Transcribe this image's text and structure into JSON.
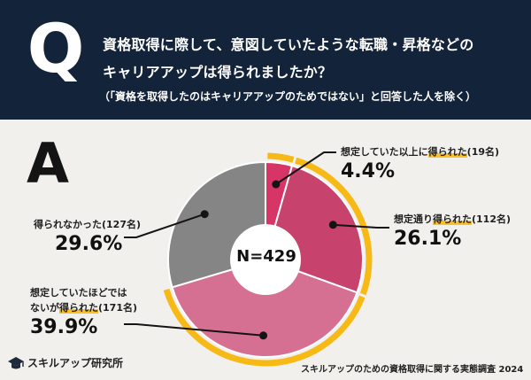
{
  "header": {
    "q_letter": "Q",
    "question_line1": "資格取得に際して、意図していたような転職・昇格などの",
    "question_line2": "キャリアアップは得られましたか？",
    "note": "（「資格を取得したのはキャリアアップのためではない」と回答した人を除く）"
  },
  "answer_letter": "A",
  "chart_data": {
    "type": "pie",
    "title": "資格取得に際して、意図していたような転職・昇格などのキャリアアップは得られましたか？",
    "total_label": "N=429",
    "slices": [
      {
        "label_pre": "想定していた以上に",
        "label_hl": "得られた",
        "count": "(19名)",
        "percent_label": "4.4%",
        "value": 4.4,
        "color": "#d63566",
        "highlight": true
      },
      {
        "label_pre": "想定通り",
        "label_hl": "得られた",
        "count": "(112名)",
        "percent_label": "26.1%",
        "value": 26.1,
        "color": "#c8426e",
        "highlight": true
      },
      {
        "label_line1": "想定していたほどでは",
        "label_pre": "ないが",
        "label_hl": "得られた",
        "count": "(171名)",
        "percent_label": "39.9%",
        "value": 39.9,
        "color": "#d57092",
        "highlight": true
      },
      {
        "label_pre": "得られなかった",
        "label_hl": "",
        "count": "(127名)",
        "percent_label": "29.6%",
        "value": 29.6,
        "color": "#858585",
        "highlight": false
      }
    ],
    "highlight_color": "#f7b916"
  },
  "footer": {
    "brand": "スキルアップ研究所",
    "source": "スキルアップのための資格取得に関する実態調査 2024"
  }
}
